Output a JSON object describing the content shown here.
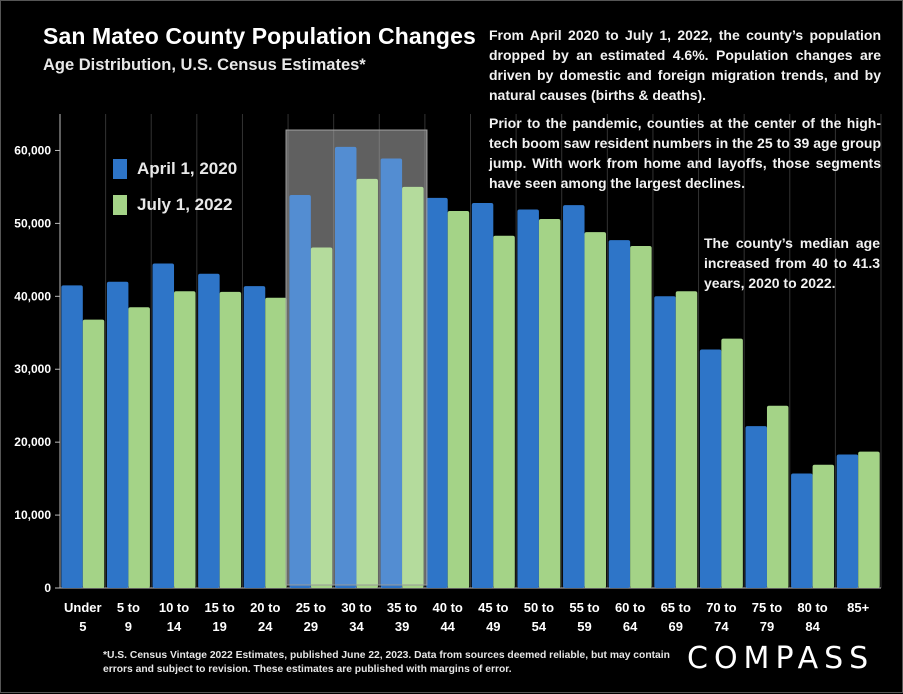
{
  "title": "San Mateo County Population Changes",
  "subtitle": "Age Distribution, U.S. Census Estimates*",
  "annotations": [
    "From April 2020 to July 1, 2022, the county’s population dropped by an estimated 4.6%. Population changes are driven by domestic and foreign migration trends, and by natural causes (births & deaths).",
    "Prior to the pandemic, counties at the center of the high-tech boom saw resident numbers in the 25 to 39 age group jump. With work from home and layoffs, those segments have seen among the largest declines.",
    "The county’s median age increased from 40 to 41.3 years, 2020 to 2022."
  ],
  "footnote": "*U.S. Census Vintage 2022 Estimates, published June 22, 2023. Data from sources deemed reliable, but may contain errors and subject to revision. These estimates are published with margins of error.",
  "logo": "COMPASS",
  "colors": {
    "background": "#000000",
    "series_2020": "#2e75c8",
    "series_2022": "#a4d387",
    "highlight_box": "#8a8a8a",
    "gridline": "#333333"
  },
  "chart_data": {
    "type": "bar",
    "title": "San Mateo County Population Changes",
    "subtitle": "Age Distribution, U.S. Census Estimates*",
    "categories": [
      [
        "Under",
        "5"
      ],
      [
        "5 to",
        "9"
      ],
      [
        "10 to",
        "14"
      ],
      [
        "15 to",
        "19"
      ],
      [
        "20 to",
        "24"
      ],
      [
        "25 to",
        "29"
      ],
      [
        "30 to",
        "34"
      ],
      [
        "35 to",
        "39"
      ],
      [
        "40 to",
        "44"
      ],
      [
        "45 to",
        "49"
      ],
      [
        "50 to",
        "54"
      ],
      [
        "55 to",
        "59"
      ],
      [
        "60 to",
        "64"
      ],
      [
        "65 to",
        "69"
      ],
      [
        "70 to",
        "74"
      ],
      [
        "75 to",
        "79"
      ],
      [
        "80 to",
        "84"
      ],
      [
        "85+",
        ""
      ]
    ],
    "series": [
      {
        "name": "April 1, 2020",
        "values": [
          41500,
          42000,
          44500,
          43100,
          41400,
          53900,
          60500,
          58900,
          53500,
          52800,
          51900,
          52500,
          47700,
          40000,
          32700,
          22200,
          15700,
          18300
        ]
      },
      {
        "name": "July 1, 2022",
        "values": [
          36800,
          38500,
          40700,
          40600,
          39800,
          46700,
          56100,
          55000,
          51700,
          48300,
          50600,
          48800,
          46900,
          40700,
          34200,
          25000,
          16900,
          18700
        ]
      }
    ],
    "ylim": [
      0,
      65000
    ],
    "yticks": [
      0,
      10000,
      20000,
      30000,
      40000,
      50000,
      60000
    ],
    "ytick_labels": [
      "0",
      "10,000",
      "20,000",
      "30,000",
      "40,000",
      "50,000",
      "60,000"
    ],
    "highlight_categories": [
      5,
      6,
      7
    ],
    "grid": true,
    "legend_position": "top-left"
  }
}
